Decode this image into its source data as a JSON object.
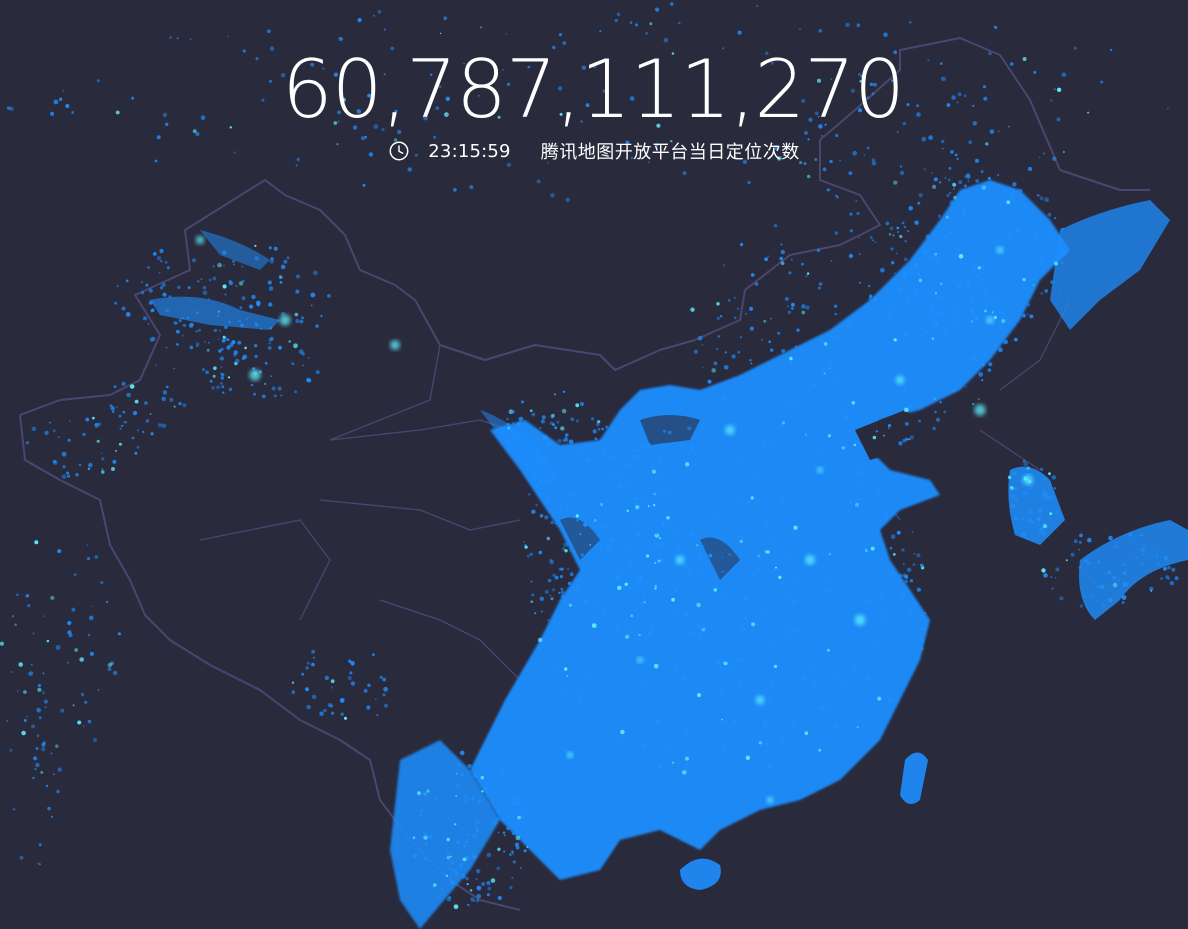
{
  "header": {
    "count": "60,787,111,270",
    "time": "23:15:59",
    "description": "腾讯地图开放平台当日定位次数"
  },
  "icons": {
    "clock": "clock-icon"
  },
  "colors": {
    "background": "#2a2a3d",
    "border": "#4a4670",
    "dots": "#1e8fff",
    "highlight": "#5ff3ff"
  }
}
